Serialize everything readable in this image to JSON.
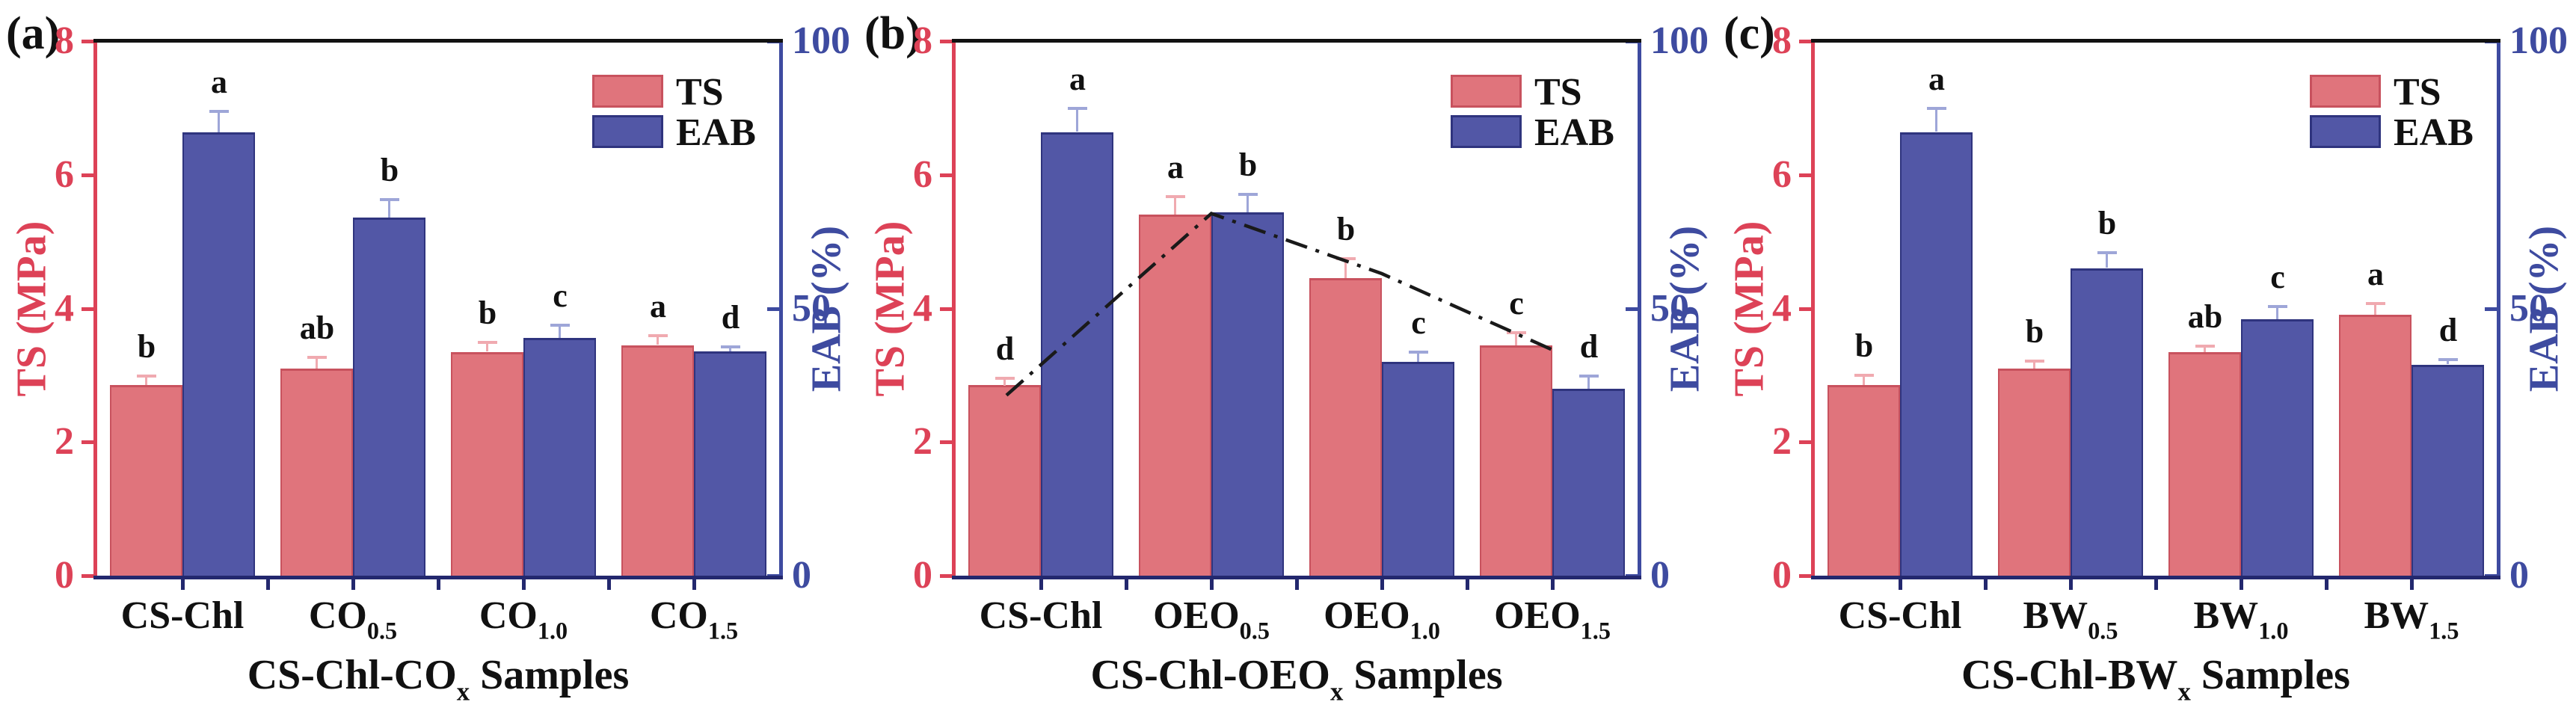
{
  "figure": {
    "background": "#ffffff",
    "legend": {
      "items": [
        {
          "label": "TS",
          "series": "ts"
        },
        {
          "label": "EAB",
          "series": "eab"
        }
      ]
    }
  },
  "colors": {
    "ts_fill": "#e0747c",
    "ts_edge": "#c8525e",
    "ts_error": "#f0aab0",
    "ts_axis": "#dd4257",
    "eab_fill": "#5257a6",
    "eab_edge": "#2f347e",
    "eab_error": "#9ea6d8",
    "eab_axis": "#3e4ba0",
    "top_spine": "#111111",
    "bottom_spine": "#23286e",
    "letters": "#111111",
    "trend": "#1a1a1a",
    "text": "#111111"
  },
  "chart_data": [
    {
      "type": "bar",
      "panel_label": "(a)",
      "categories": [
        {
          "text": "CS-Chl",
          "sub": ""
        },
        {
          "text": "CO",
          "sub": "0.5"
        },
        {
          "text": "CO",
          "sub": "1.0"
        },
        {
          "text": "CO",
          "sub": "1.5"
        }
      ],
      "x_title": {
        "text": "CS-Chl-CO",
        "sub": "x",
        "suffix": " Samples"
      },
      "left_axis": {
        "title": "TS (MPa)",
        "range": [
          0,
          8
        ],
        "ticks": [
          0,
          2,
          4,
          6,
          8
        ]
      },
      "right_axis": {
        "title": "EAB (%)",
        "range": [
          0,
          100
        ],
        "ticks": [
          0,
          50,
          100
        ]
      },
      "series": [
        {
          "name": "TS",
          "axis": "left",
          "values": [
            2.85,
            3.1,
            3.35,
            3.45
          ],
          "errors": [
            0.15,
            0.18,
            0.15,
            0.15
          ],
          "letters": [
            "b",
            "ab",
            "b",
            "a"
          ]
        },
        {
          "name": "EAB",
          "axis": "right",
          "values": [
            83,
            67,
            44.5,
            42
          ],
          "errors": [
            4,
            3.5,
            2.5,
            1
          ],
          "letters": [
            "a",
            "b",
            "c",
            "d"
          ]
        }
      ],
      "trend_line": null
    },
    {
      "type": "bar",
      "panel_label": "(b)",
      "categories": [
        {
          "text": "CS-Chl",
          "sub": ""
        },
        {
          "text": "OEO",
          "sub": "0.5"
        },
        {
          "text": "OEO",
          "sub": "1.0"
        },
        {
          "text": "OEO",
          "sub": "1.5"
        }
      ],
      "x_title": {
        "text": "CS-Chl-OEO",
        "sub": "x",
        "suffix": " Samples"
      },
      "left_axis": {
        "title": "TS (MPa)",
        "range": [
          0,
          8
        ],
        "ticks": [
          0,
          2,
          4,
          6,
          8
        ]
      },
      "right_axis": {
        "title": "EAB (%)",
        "range": [
          0,
          100
        ],
        "ticks": [
          0,
          50,
          100
        ]
      },
      "series": [
        {
          "name": "TS",
          "axis": "left",
          "values": [
            2.85,
            5.4,
            4.45,
            3.45
          ],
          "errors": [
            0.12,
            0.28,
            0.3,
            0.2
          ],
          "letters": [
            "d",
            "a",
            "b",
            "c"
          ]
        },
        {
          "name": "EAB",
          "axis": "right",
          "values": [
            83,
            68,
            40,
            35
          ],
          "errors": [
            4.5,
            3.5,
            2,
            2.5
          ],
          "letters": [
            "a",
            "b",
            "c",
            "d"
          ]
        }
      ],
      "trend_line": {
        "series": "TS",
        "style": "dash-dot",
        "color": "#1a1a1a",
        "values": [
          2.7,
          5.42,
          4.52,
          3.38
        ]
      }
    },
    {
      "type": "bar",
      "panel_label": "(c)",
      "categories": [
        {
          "text": "CS-Chl",
          "sub": ""
        },
        {
          "text": "BW",
          "sub": "0.5"
        },
        {
          "text": "BW",
          "sub": "1.0"
        },
        {
          "text": "BW",
          "sub": "1.5"
        }
      ],
      "x_title": {
        "text": "CS-Chl-BW",
        "sub": "x",
        "suffix": " Samples"
      },
      "left_axis": {
        "title": "TS (MPa)",
        "range": [
          0,
          8
        ],
        "ticks": [
          0,
          2,
          4,
          6,
          8
        ]
      },
      "right_axis": {
        "title": "EAB (%)",
        "range": [
          0,
          100
        ],
        "ticks": [
          0,
          50,
          100
        ]
      },
      "series": [
        {
          "name": "TS",
          "axis": "left",
          "values": [
            2.85,
            3.1,
            3.35,
            3.9
          ],
          "errors": [
            0.16,
            0.12,
            0.1,
            0.18
          ],
          "letters": [
            "b",
            "b",
            "ab",
            "a"
          ]
        },
        {
          "name": "EAB",
          "axis": "right",
          "values": [
            83,
            57.5,
            48,
            39.5
          ],
          "errors": [
            4.5,
            3,
            2.5,
            1
          ],
          "letters": [
            "a",
            "b",
            "c",
            "d"
          ]
        }
      ],
      "trend_line": null
    }
  ]
}
